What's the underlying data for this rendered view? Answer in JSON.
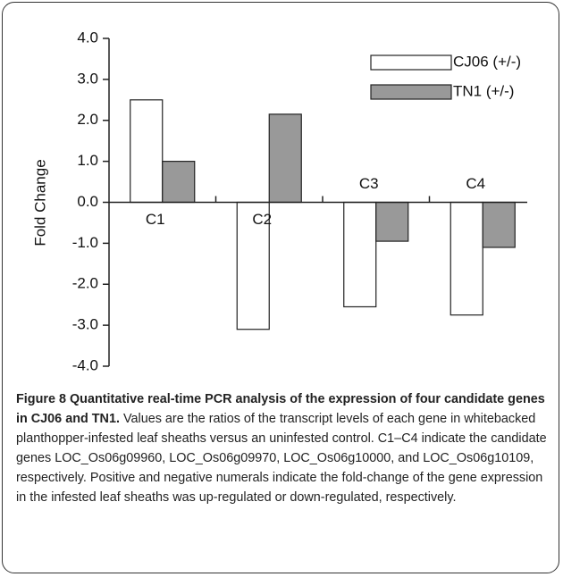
{
  "chart_data": {
    "type": "bar",
    "ylabel": "Fold Change",
    "categories": [
      "C1",
      "C2",
      "C3",
      "C4"
    ],
    "series": [
      {
        "name": "CJ06 (+/-)",
        "color": "#ffffff",
        "values": [
          2.5,
          -3.1,
          -2.55,
          -2.75
        ]
      },
      {
        "name": "TN1 (+/-)",
        "color": "#999999",
        "values": [
          1.0,
          2.15,
          -0.95,
          -1.1
        ]
      }
    ],
    "ylim": [
      -4,
      4
    ],
    "yticks": [
      {
        "value": 4,
        "label": "4.0"
      },
      {
        "value": 3,
        "label": "3.0"
      },
      {
        "value": 2,
        "label": "2.0"
      },
      {
        "value": 1,
        "label": "1.0"
      },
      {
        "value": 0,
        "label": "0.0"
      },
      {
        "value": -1,
        "label": "-1.0"
      },
      {
        "value": -2,
        "label": "-2.0"
      },
      {
        "value": -3,
        "label": "-3.0"
      },
      {
        "value": -4,
        "label": "-4.0"
      }
    ],
    "legend": "upper right"
  },
  "caption": {
    "label": "Figure 8",
    "title": "Quantitative real-time PCR analysis of the expression of four candidate genes in CJ06 and TN1.",
    "text": "Values are the ratios of the transcript levels of each gene in whitebacked planthopper-infested leaf sheaths versus an uninfested control. C1–C4 indicate the candidate genes LOC_Os06g09960, LOC_Os06g09970, LOC_Os06g10000, and LOC_Os06g10109, respectively. Positive and negative numerals indicate the fold-change of the gene expression in the infested leaf sheaths was up-regulated or down-regulated, respectively."
  }
}
